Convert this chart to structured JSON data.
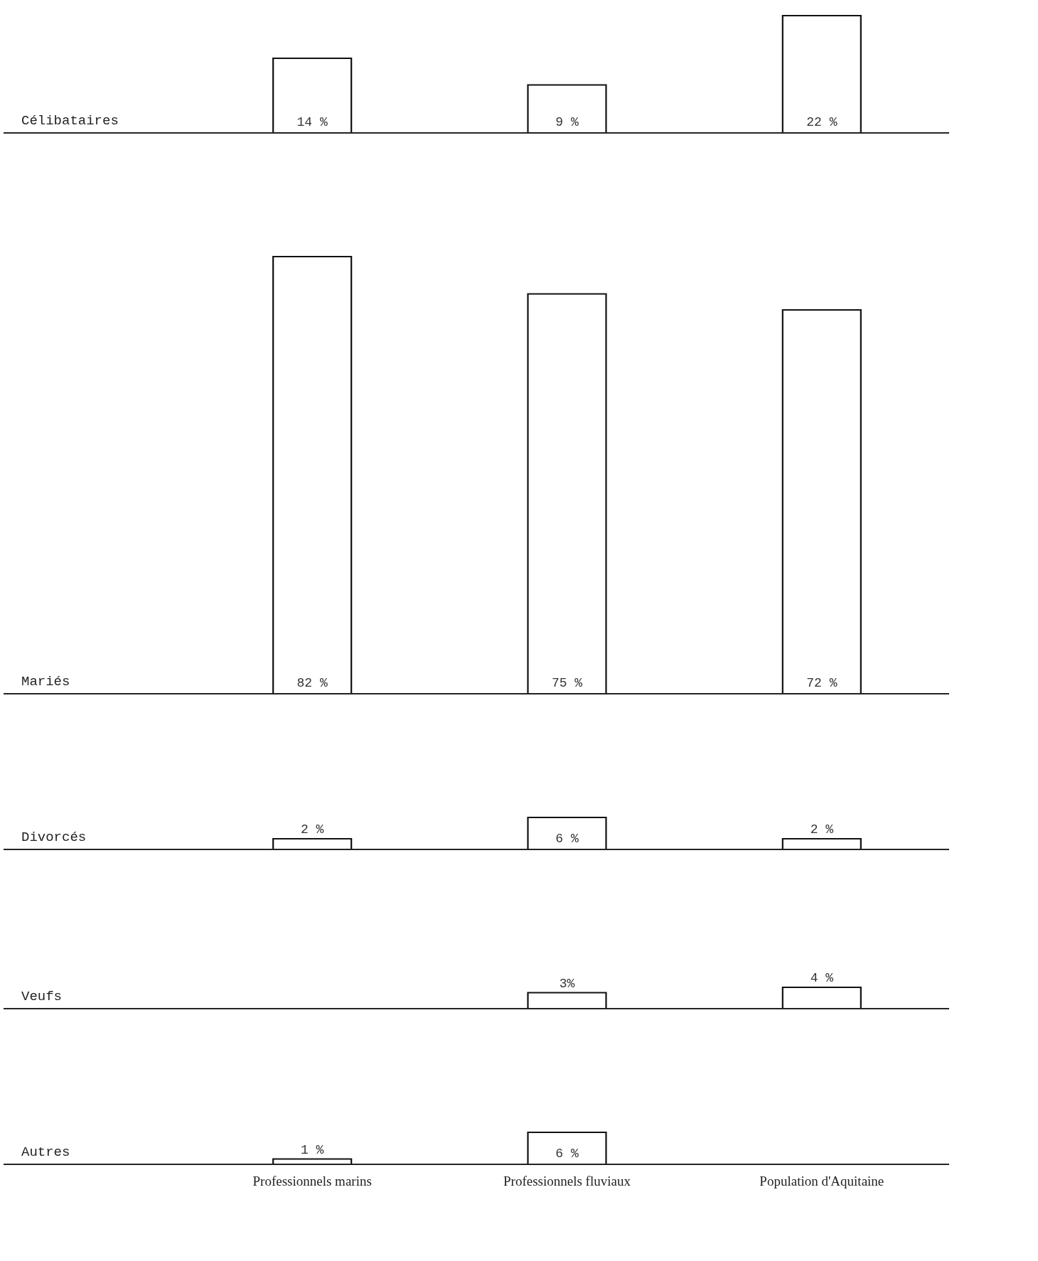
{
  "chart_data": [
    {
      "type": "bar",
      "ylabel": "Célibataires",
      "categories": [
        null,
        null,
        null
      ],
      "values": [
        14,
        9,
        22
      ],
      "value_labels": [
        "14 %",
        "9 %",
        "22 %"
      ],
      "color": "#ffffff",
      "tick_labels": false
    },
    {
      "type": "bar",
      "ylabel": "Mariés",
      "categories": [
        null,
        null,
        null
      ],
      "values": [
        82,
        75,
        72
      ],
      "value_labels": [
        "82 %",
        "75 %",
        "72 %"
      ],
      "color": "#ffffff",
      "tick_labels": false
    },
    {
      "type": "bar",
      "ylabel": "Divorcés",
      "categories": [
        null,
        null,
        null
      ],
      "values": [
        2,
        6,
        2
      ],
      "value_labels": [
        "2 %",
        "6 %",
        "2 %"
      ],
      "color": "#ffffff",
      "tick_labels": false
    },
    {
      "type": "bar",
      "ylabel": "Veufs",
      "categories": [
        null,
        null,
        null
      ],
      "values": [
        null,
        3,
        4
      ],
      "value_labels": [
        null,
        "3%",
        "4 %"
      ],
      "color": "#ffffff",
      "tick_labels": false
    },
    {
      "type": "bar",
      "ylabel": "Autres",
      "categories": [
        "Professionnels marins",
        "Professionnels fluviaux",
        "Population d'Aquitaine"
      ],
      "values": [
        1,
        6,
        null
      ],
      "value_labels": [
        "1 %",
        "6 %",
        null
      ],
      "color": "#ffffff",
      "tick_labels": "x"
    }
  ]
}
